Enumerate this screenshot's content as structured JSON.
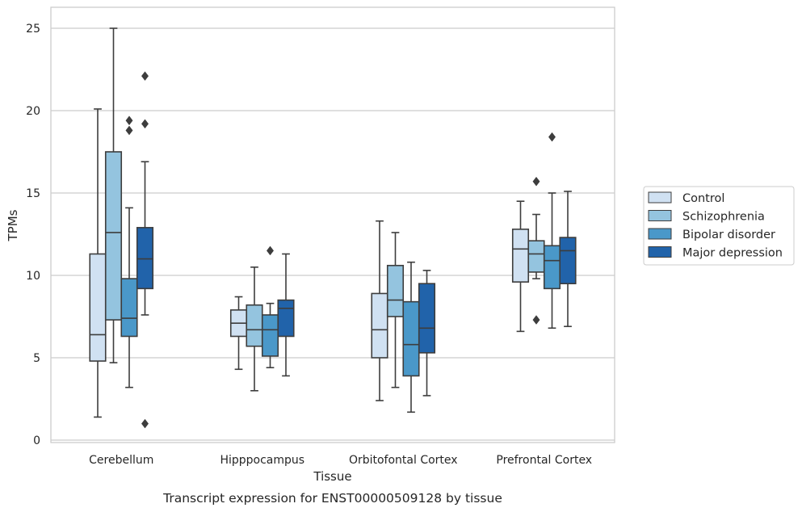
{
  "chart_data": {
    "type": "box",
    "xlabel": "Tissue",
    "ylabel": "TPMs",
    "caption": "Transcript expression for ENST00000509128 by tissue",
    "ylim": [
      0,
      26
    ],
    "yticks": [
      0,
      5,
      10,
      15,
      20,
      25
    ],
    "grid": true,
    "legend_position": "right",
    "categories": [
      "Cerebellum",
      "Hipppocampus",
      "Orbitofontal Cortex",
      "Prefrontal Cortex"
    ],
    "series": [
      {
        "name": "Control",
        "color": "#d0e1f2",
        "boxes": [
          {
            "whislo": 1.4,
            "q1": 4.8,
            "med": 6.4,
            "q3": 11.3,
            "whishi": 20.1,
            "fliers": []
          },
          {
            "whislo": 4.3,
            "q1": 6.3,
            "med": 7.1,
            "q3": 7.9,
            "whishi": 8.7,
            "fliers": []
          },
          {
            "whislo": 2.4,
            "q1": 5.0,
            "med": 6.7,
            "q3": 8.9,
            "whishi": 13.3,
            "fliers": []
          },
          {
            "whislo": 6.6,
            "q1": 9.6,
            "med": 11.6,
            "q3": 12.8,
            "whishi": 14.5,
            "fliers": []
          }
        ]
      },
      {
        "name": "Schizophrenia",
        "color": "#94c4df",
        "boxes": [
          {
            "whislo": 4.7,
            "q1": 7.3,
            "med": 12.6,
            "q3": 17.5,
            "whishi": 25.0,
            "fliers": []
          },
          {
            "whislo": 3.0,
            "q1": 5.7,
            "med": 6.7,
            "q3": 8.2,
            "whishi": 10.5,
            "fliers": []
          },
          {
            "whislo": 3.2,
            "q1": 7.5,
            "med": 8.5,
            "q3": 10.6,
            "whishi": 12.6,
            "fliers": []
          },
          {
            "whislo": 9.8,
            "q1": 10.2,
            "med": 11.3,
            "q3": 12.1,
            "whishi": 13.7,
            "fliers": [
              7.3,
              15.7
            ]
          }
        ]
      },
      {
        "name": "Bipolar disorder",
        "color": "#4a98c9",
        "boxes": [
          {
            "whislo": 3.2,
            "q1": 6.3,
            "med": 7.4,
            "q3": 9.8,
            "whishi": 14.1,
            "fliers": [
              18.8,
              19.4
            ]
          },
          {
            "whislo": 4.4,
            "q1": 5.1,
            "med": 6.7,
            "q3": 7.6,
            "whishi": 8.3,
            "fliers": [
              11.5
            ]
          },
          {
            "whislo": 1.7,
            "q1": 3.9,
            "med": 5.8,
            "q3": 8.4,
            "whishi": 10.8,
            "fliers": []
          },
          {
            "whislo": 6.8,
            "q1": 9.2,
            "med": 10.9,
            "q3": 11.8,
            "whishi": 15.0,
            "fliers": [
              18.4
            ]
          }
        ]
      },
      {
        "name": "Major depression",
        "color": "#2163aa",
        "boxes": [
          {
            "whislo": 7.6,
            "q1": 9.2,
            "med": 11.0,
            "q3": 12.9,
            "whishi": 16.9,
            "fliers": [
              1.0,
              19.2,
              22.1
            ]
          },
          {
            "whislo": 3.9,
            "q1": 6.3,
            "med": 8.0,
            "q3": 8.5,
            "whishi": 11.3,
            "fliers": []
          },
          {
            "whislo": 2.7,
            "q1": 5.3,
            "med": 6.8,
            "q3": 9.5,
            "whishi": 10.3,
            "fliers": []
          },
          {
            "whislo": 6.9,
            "q1": 9.5,
            "med": 11.5,
            "q3": 12.3,
            "whishi": 15.1,
            "fliers": []
          }
        ]
      }
    ]
  }
}
